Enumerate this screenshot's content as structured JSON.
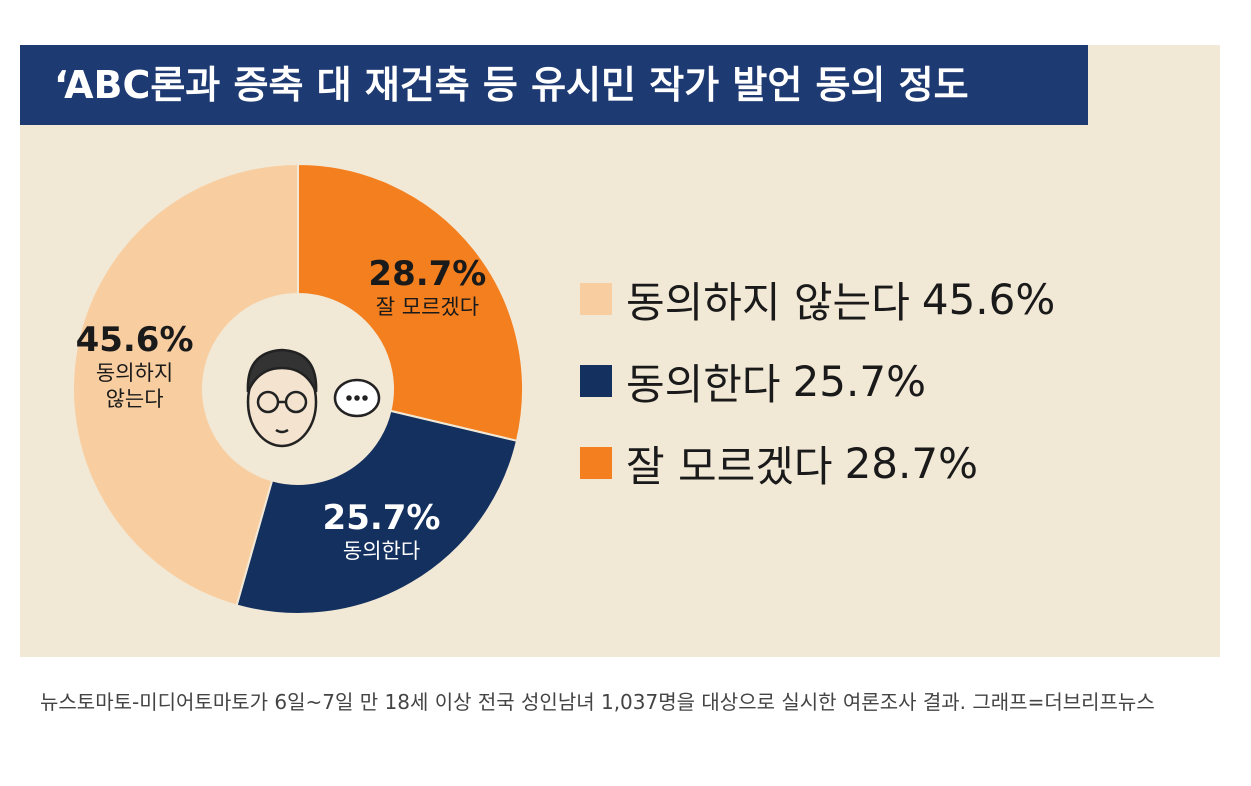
{
  "chart_data": {
    "type": "donut",
    "title": "‘ABC론과 증축 대 재건축 등 유시민 작가 발언 동의 정도",
    "categories": [
      "동의하지 않는다",
      "동의한다",
      "잘 모르겠다"
    ],
    "values": [
      45.6,
      25.7,
      28.7
    ],
    "value_labels": [
      "45.6%",
      "25.7%",
      "28.7%"
    ],
    "colors": [
      "#f8cea0",
      "#13305f",
      "#f47f1e"
    ],
    "legend": "right"
  },
  "caption": "뉴스토마토-미디어토마토가 6일~7일 만 18세 이상 전국 성인남녀 1,037명을 대상으로 실시한 여론조사 결과. 그래프=더브리프뉴스"
}
